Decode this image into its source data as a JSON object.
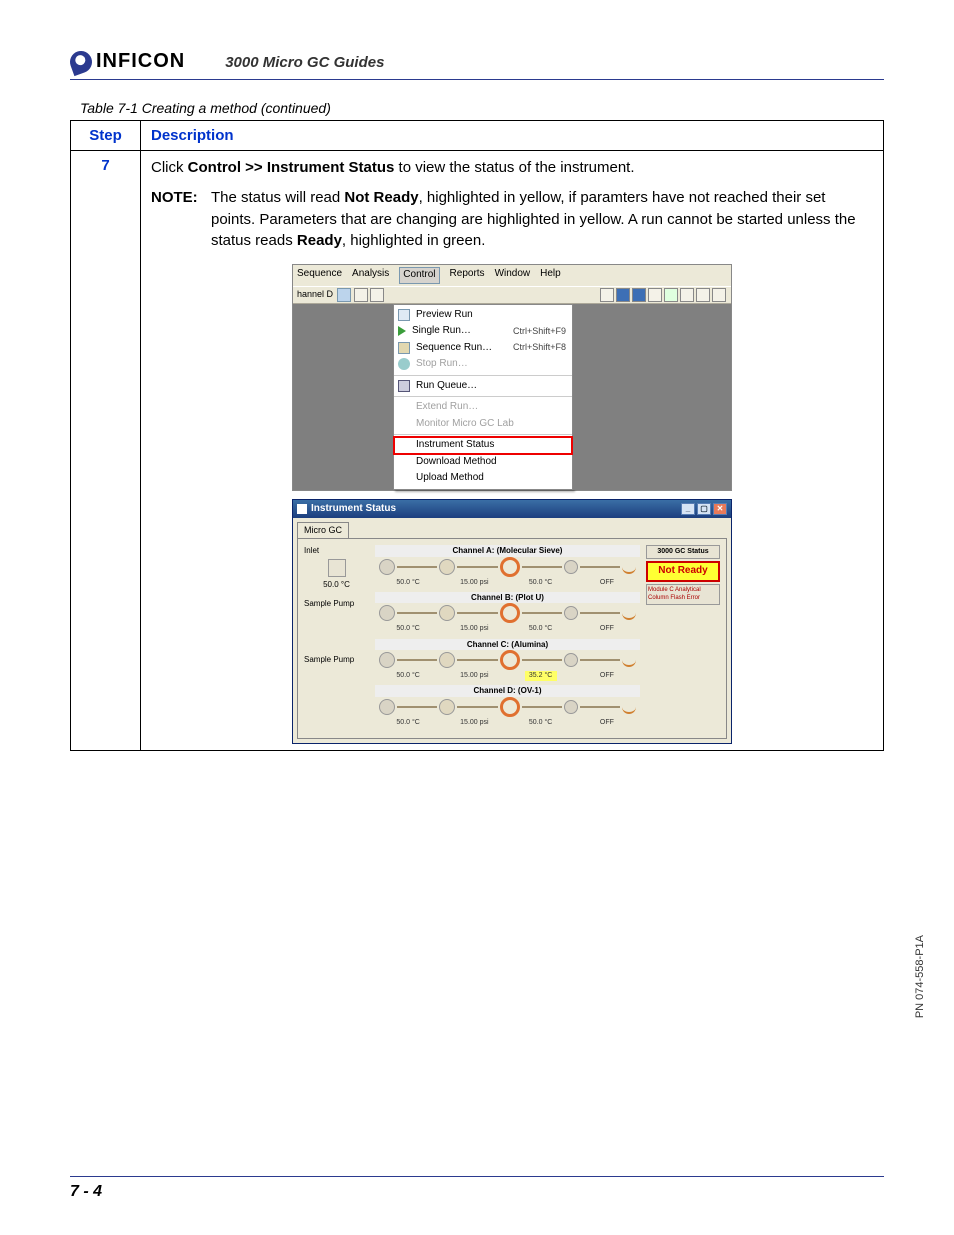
{
  "logo_text": "INFICON",
  "doc_title": "3000 Micro GC Guides",
  "table_caption": "Table 7-1  Creating a method (continued)",
  "columns": {
    "step": "Step",
    "desc": "Description"
  },
  "row": {
    "step": "7",
    "line1_a": "Click ",
    "line1_b": "Control >> Instrument Status",
    "line1_c": " to view the status of the instrument.",
    "note_label": "NOTE:",
    "note_a": "The status will read ",
    "note_b": "Not Ready",
    "note_c": ", highlighted in yellow, if paramters have not reached their set points. Parameters that are changing are highlighted in yellow. A run cannot be started unless the status reads ",
    "note_d": "Ready",
    "note_e": ", highlighted in green."
  },
  "shot1": {
    "menubar": [
      "Sequence",
      "Analysis",
      "Control",
      "Reports",
      "Window",
      "Help"
    ],
    "channel_label": "hannel D",
    "menu": [
      {
        "text": "Preview Run",
        "short": "",
        "icon": "preview",
        "dis": false
      },
      {
        "text": "Single Run…",
        "short": "Ctrl+Shift+F9",
        "icon": "play",
        "dis": false
      },
      {
        "text": "Sequence Run…",
        "short": "Ctrl+Shift+F8",
        "icon": "seq",
        "dis": false
      },
      {
        "text": "Stop Run…",
        "short": "",
        "icon": "stop",
        "dis": true
      },
      {
        "text": "Run Queue…",
        "short": "",
        "icon": "queue",
        "dis": false
      },
      {
        "text": "Extend Run…",
        "short": "",
        "icon": "",
        "dis": true
      },
      {
        "text": "Monitor Micro GC Lab",
        "short": "",
        "icon": "",
        "dis": true
      },
      {
        "text": "Instrument Status",
        "short": "",
        "icon": "",
        "dis": false,
        "hl": true
      },
      {
        "text": "Download Method",
        "short": "",
        "icon": "",
        "dis": false
      },
      {
        "text": "Upload Method",
        "short": "",
        "icon": "",
        "dis": false
      }
    ]
  },
  "shot2": {
    "title": "Instrument Status",
    "tab": "Micro GC",
    "inlet": "Inlet",
    "inlet_val": "50.0 °C",
    "sample_pump": "Sample Pump",
    "gc_status_head": "3000 GC Status",
    "not_ready": "Not Ready",
    "mod_note": "Module C Analytical Column Flash Error",
    "channels": [
      {
        "name": "Channel  A:  (Molecular Sieve)",
        "v1": "50.0 °C",
        "v2": "15.00 psi",
        "v3": "50.0 °C",
        "v4": "OFF",
        "hl": false
      },
      {
        "name": "Channel  B:  (Plot U)",
        "v1": "50.0 °C",
        "v2": "15.00 psi",
        "v3": "50.0 °C",
        "v4": "OFF",
        "hl": false
      },
      {
        "name": "Channel  C:  (Alumina)",
        "v1": "50.0 °C",
        "v2": "15.00 psi",
        "v3": "35.2 °C",
        "v4": "OFF",
        "hl": true
      },
      {
        "name": "Channel  D:  (OV-1)",
        "v1": "50.0 °C",
        "v2": "15.00 psi",
        "v3": "50.0 °C",
        "v4": "OFF",
        "hl": false
      }
    ]
  },
  "side_pn": "PN 074-558-P1A",
  "page_num": "7 - 4"
}
